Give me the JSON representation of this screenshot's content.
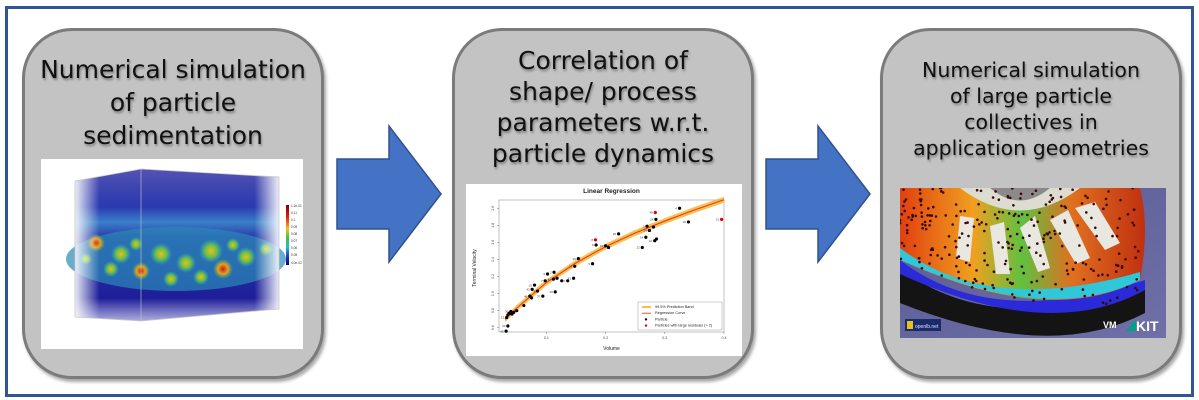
{
  "diagram": {
    "frame_color": "#2f5597",
    "panel_fill": "#c3c3c3",
    "panel_border": "#7b7b7b",
    "arrow_color": "#4472c4",
    "arrow_border": "#2f528f",
    "steps": [
      {
        "title_lines": [
          "Numerical simulation",
          "of particle",
          "sedimentation"
        ],
        "image": {
          "description": "3D volume rendering of sedimenting particles in a box",
          "colorbar_labels": [
            "1.2e-01",
            "0.11",
            "0.1",
            "0.09",
            "0.08",
            "0.07",
            "0.06",
            "0.05",
            "4.0e-02"
          ],
          "colorbar_title": "Axial Symmetry"
        }
      },
      {
        "title_lines": [
          "Correlation of",
          "shape/ process",
          "parameters w.r.t.",
          "particle dynamics"
        ],
        "image": {
          "description": "Linear regression plot of terminal velocity vs volume"
        }
      },
      {
        "title_lines": [
          "Numerical simulation",
          "of large particle",
          "collectives in",
          "application geometries"
        ],
        "image": {
          "description": "Simulation of particles in rotating disc geometry",
          "logos": [
            "openlb.net",
            "VM",
            "KIT"
          ]
        }
      }
    ],
    "arrows": [
      {
        "from": 1,
        "to": 2,
        "icon": "right-arrow-icon"
      },
      {
        "from": 2,
        "to": 3,
        "icon": "right-arrow-icon"
      }
    ]
  },
  "chart_data": {
    "type": "scatter",
    "title": "Linear Regression",
    "xlabel": "Volume",
    "ylabel": "Terminal Velocity",
    "xlim": [
      0.02,
      0.4
    ],
    "ylim": [
      0.55,
      2.05
    ],
    "xticks": [
      "0.1",
      "0.2",
      "0.3",
      "0.4"
    ],
    "yticks": [
      "0.6",
      "0.8",
      "1.0",
      "1.2",
      "1.4",
      "1.6",
      "1.8",
      "2.0"
    ],
    "grid": false,
    "legend_position": "lower right",
    "legend": [
      {
        "label": "99.5% Prediction Band",
        "type": "band",
        "color": "#f7b733"
      },
      {
        "label": "Regression Curve",
        "type": "line",
        "color": "#e8392b"
      },
      {
        "label": "Particle",
        "type": "point",
        "color": "#000000"
      },
      {
        "label": "Particles with large residuals (> 2)",
        "type": "point",
        "color": "#e00000"
      }
    ],
    "curve": {
      "x": [
        0.03,
        0.05,
        0.1,
        0.15,
        0.2,
        0.25,
        0.3,
        0.35,
        0.4
      ],
      "y": [
        0.7,
        0.83,
        1.13,
        1.36,
        1.55,
        1.71,
        1.85,
        1.98,
        2.1
      ]
    },
    "band_halfwidth": 0.035,
    "series": [
      {
        "name": "Particle",
        "color": "#000000",
        "points": [
          {
            "x": 0.032,
            "y": 0.56,
            "label": "45"
          },
          {
            "x": 0.035,
            "y": 0.62,
            "label": "33"
          },
          {
            "x": 0.033,
            "y": 0.72,
            "label": "13"
          },
          {
            "x": 0.035,
            "y": 0.75,
            "label": ""
          },
          {
            "x": 0.037,
            "y": 0.77,
            "label": ""
          },
          {
            "x": 0.04,
            "y": 0.79,
            "label": "30"
          },
          {
            "x": 0.042,
            "y": 0.76,
            "label": ""
          },
          {
            "x": 0.045,
            "y": 0.78,
            "label": ""
          },
          {
            "x": 0.05,
            "y": 0.8,
            "label": ""
          },
          {
            "x": 0.062,
            "y": 0.86,
            "label": ""
          },
          {
            "x": 0.072,
            "y": 0.97,
            "label": "46"
          },
          {
            "x": 0.076,
            "y": 1.05,
            "label": "42"
          },
          {
            "x": 0.08,
            "y": 1.1,
            "label": "15"
          },
          {
            "x": 0.085,
            "y": 1.03,
            "label": "1"
          },
          {
            "x": 0.075,
            "y": 0.95,
            "label": ""
          },
          {
            "x": 0.094,
            "y": 0.97,
            "label": "37"
          },
          {
            "x": 0.098,
            "y": 1.15,
            "label": "7"
          },
          {
            "x": 0.102,
            "y": 1.23,
            "label": "9"
          },
          {
            "x": 0.113,
            "y": 1.25,
            "label": "2"
          },
          {
            "x": 0.112,
            "y": 1.17,
            "label": "43"
          },
          {
            "x": 0.118,
            "y": 1.18,
            "label": ""
          },
          {
            "x": 0.115,
            "y": 1.02,
            "label": "36"
          },
          {
            "x": 0.126,
            "y": 1.15,
            "label": ""
          },
          {
            "x": 0.136,
            "y": 1.15,
            "label": "27"
          },
          {
            "x": 0.146,
            "y": 1.18,
            "label": "41"
          },
          {
            "x": 0.148,
            "y": 1.32,
            "label": "25"
          },
          {
            "x": 0.154,
            "y": 1.41,
            "label": "39"
          },
          {
            "x": 0.178,
            "y": 1.35,
            "label": "5"
          },
          {
            "x": 0.184,
            "y": 1.57,
            "label": "6"
          },
          {
            "x": 0.2,
            "y": 1.56,
            "label": "16"
          },
          {
            "x": 0.205,
            "y": 1.54,
            "label": ""
          },
          {
            "x": 0.222,
            "y": 1.7,
            "label": "35"
          },
          {
            "x": 0.262,
            "y": 1.54,
            "label": "22"
          },
          {
            "x": 0.268,
            "y": 1.66,
            "label": "14"
          },
          {
            "x": 0.27,
            "y": 1.79,
            "label": "3"
          },
          {
            "x": 0.274,
            "y": 1.74,
            "label": "29"
          },
          {
            "x": 0.281,
            "y": 1.78,
            "label": ""
          },
          {
            "x": 0.283,
            "y": 1.62,
            "label": "10"
          },
          {
            "x": 0.286,
            "y": 1.64,
            "label": ""
          },
          {
            "x": 0.285,
            "y": 1.87,
            "label": "24"
          },
          {
            "x": 0.325,
            "y": 2.0,
            "label": "4"
          },
          {
            "x": 0.34,
            "y": 1.84,
            "label": "19"
          }
        ]
      },
      {
        "name": "Particles with large residuals (> 2)",
        "color": "#e00000",
        "points": [
          {
            "x": 0.183,
            "y": 1.63,
            "label": "8"
          },
          {
            "x": 0.284,
            "y": 1.95,
            "label": "48"
          },
          {
            "x": 0.396,
            "y": 1.87,
            "label": "31"
          }
        ]
      }
    ]
  }
}
